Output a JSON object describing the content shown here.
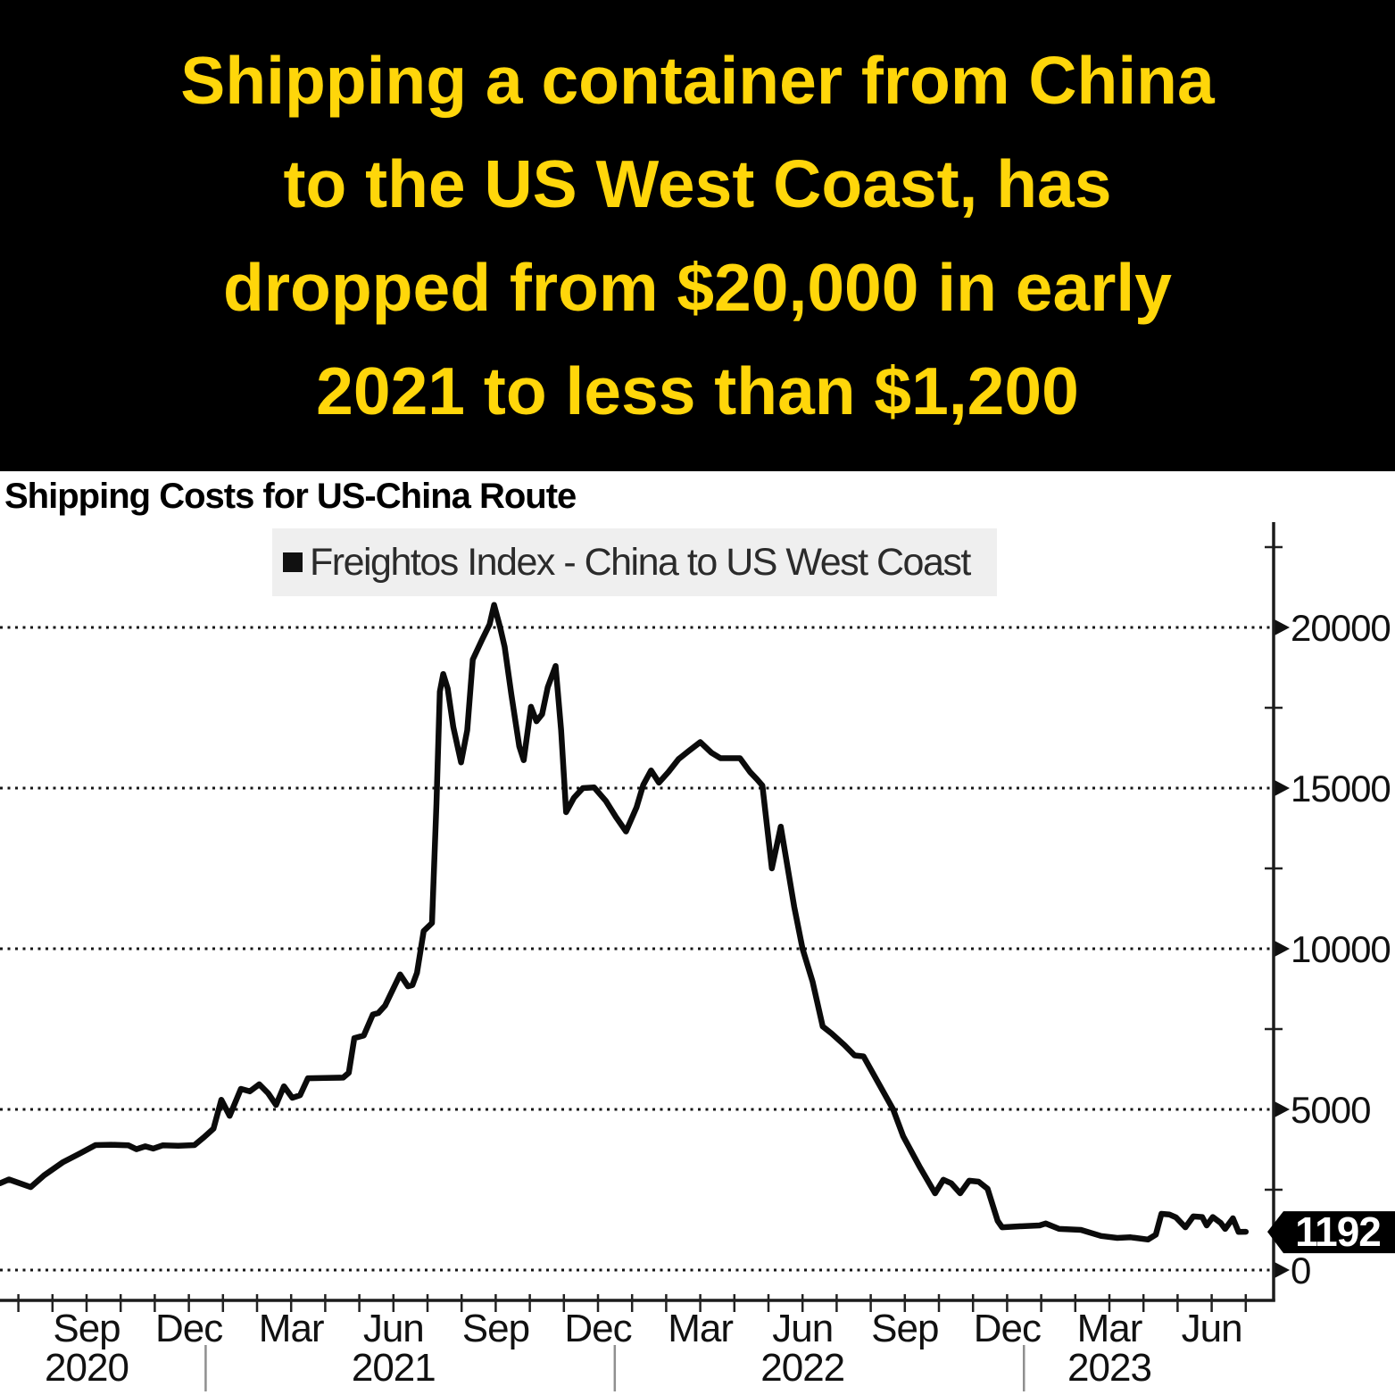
{
  "header": {
    "bg_color": "#000000",
    "text_color": "#FFD60A",
    "lines": [
      "Shipping a container from China",
      "to the US West Coast, has",
      "dropped from $20,000 in early",
      "2021 to less than $1,200"
    ]
  },
  "chart": {
    "title": "Shipping Costs for US-China Route",
    "legend": {
      "marker": "black-square",
      "label": "Freightos Index - China to US West Coast"
    },
    "value_tag": {
      "label": "1192",
      "bg": "#000000",
      "color": "#ffffff"
    },
    "line_color": "#0b0b0b"
  },
  "chart_data": {
    "type": "line",
    "title": "Shipping Costs for US-China Route",
    "legend_position": "top-center",
    "grid": "dotted horizontal",
    "ylim": [
      0,
      22500
    ],
    "y_ticks": [
      {
        "value": 0,
        "label": "0"
      },
      {
        "value": 5000,
        "label": "5000"
      },
      {
        "value": 10000,
        "label": "10000"
      },
      {
        "value": 15000,
        "label": "15000"
      },
      {
        "value": 20000,
        "label": "20000"
      }
    ],
    "y_minor_ticks": [
      2500,
      7500,
      12500,
      17500,
      22500
    ],
    "x_range": [
      "2020-06-15",
      "2023-07-01"
    ],
    "x_ticks": [
      {
        "date": "2020-09",
        "label": "Sep",
        "year": "2020"
      },
      {
        "date": "2020-12",
        "label": "Dec"
      },
      {
        "date": "2021-03",
        "label": "Mar"
      },
      {
        "date": "2021-06",
        "label": "Jun",
        "year": "2021"
      },
      {
        "date": "2021-09",
        "label": "Sep"
      },
      {
        "date": "2021-12",
        "label": "Dec"
      },
      {
        "date": "2022-03",
        "label": "Mar"
      },
      {
        "date": "2022-06",
        "label": "Jun",
        "year": "2022"
      },
      {
        "date": "2022-09",
        "label": "Sep"
      },
      {
        "date": "2022-12",
        "label": "Dec"
      },
      {
        "date": "2023-03",
        "label": "Mar",
        "year": "2023"
      },
      {
        "date": "2023-06",
        "label": "Jun"
      }
    ],
    "year_dividers": [
      "2020-12-16",
      "2021-12-16",
      "2022-12-16"
    ],
    "last_value": 1192,
    "series": [
      {
        "name": "Freightos Index - China to US West Coast",
        "color": "#0b0b0b",
        "points": [
          [
            "2020-06-15",
            2700
          ],
          [
            "2020-06-23",
            2820
          ],
          [
            "2020-07-12",
            2580
          ],
          [
            "2020-07-24",
            2950
          ],
          [
            "2020-08-10",
            3350
          ],
          [
            "2020-08-26",
            3640
          ],
          [
            "2020-09-09",
            3890
          ],
          [
            "2020-09-23",
            3900
          ],
          [
            "2020-10-08",
            3880
          ],
          [
            "2020-10-15",
            3760
          ],
          [
            "2020-10-23",
            3850
          ],
          [
            "2020-10-30",
            3780
          ],
          [
            "2020-11-08",
            3880
          ],
          [
            "2020-11-22",
            3870
          ],
          [
            "2020-12-06",
            3890
          ],
          [
            "2020-12-15",
            4150
          ],
          [
            "2020-12-23",
            4400
          ],
          [
            "2020-12-30",
            5300
          ],
          [
            "2021-01-07",
            4800
          ],
          [
            "2021-01-17",
            5640
          ],
          [
            "2021-01-25",
            5560
          ],
          [
            "2021-02-03",
            5780
          ],
          [
            "2021-02-11",
            5500
          ],
          [
            "2021-02-18",
            5140
          ],
          [
            "2021-02-25",
            5720
          ],
          [
            "2021-03-02",
            5360
          ],
          [
            "2021-03-09",
            5440
          ],
          [
            "2021-03-16",
            5970
          ],
          [
            "2021-04-01",
            5980
          ],
          [
            "2021-04-17",
            5990
          ],
          [
            "2021-04-22",
            6140
          ],
          [
            "2021-04-27",
            7220
          ],
          [
            "2021-05-05",
            7300
          ],
          [
            "2021-05-13",
            7950
          ],
          [
            "2021-05-18",
            8000
          ],
          [
            "2021-05-24",
            8230
          ],
          [
            "2021-06-07",
            9200
          ],
          [
            "2021-06-14",
            8830
          ],
          [
            "2021-06-18",
            8870
          ],
          [
            "2021-06-22",
            9250
          ],
          [
            "2021-06-28",
            10550
          ],
          [
            "2021-07-05",
            10800
          ],
          [
            "2021-07-09",
            14500
          ],
          [
            "2021-07-12",
            18000
          ],
          [
            "2021-07-15",
            18550
          ],
          [
            "2021-07-19",
            18100
          ],
          [
            "2021-07-24",
            16900
          ],
          [
            "2021-07-31",
            15800
          ],
          [
            "2021-08-06",
            16800
          ],
          [
            "2021-08-11",
            19000
          ],
          [
            "2021-08-19",
            19600
          ],
          [
            "2021-08-26",
            20100
          ],
          [
            "2021-08-30",
            20700
          ],
          [
            "2021-09-05",
            20000
          ],
          [
            "2021-09-09",
            19400
          ],
          [
            "2021-09-15",
            17900
          ],
          [
            "2021-09-22",
            16300
          ],
          [
            "2021-09-26",
            15870
          ],
          [
            "2021-10-02",
            17530
          ],
          [
            "2021-10-07",
            17080
          ],
          [
            "2021-10-12",
            17300
          ],
          [
            "2021-10-17",
            18140
          ],
          [
            "2021-10-24",
            18800
          ],
          [
            "2021-10-29",
            16800
          ],
          [
            "2021-11-03",
            14250
          ],
          [
            "2021-11-10",
            14700
          ],
          [
            "2021-11-18",
            15000
          ],
          [
            "2021-11-28",
            15020
          ],
          [
            "2021-12-08",
            14600
          ],
          [
            "2021-12-17",
            14100
          ],
          [
            "2021-12-26",
            13650
          ],
          [
            "2022-01-05",
            14400
          ],
          [
            "2022-01-11",
            15100
          ],
          [
            "2022-01-18",
            15550
          ],
          [
            "2022-01-25",
            15170
          ],
          [
            "2022-02-03",
            15500
          ],
          [
            "2022-02-12",
            15900
          ],
          [
            "2022-02-21",
            16150
          ],
          [
            "2022-03-01",
            16430
          ],
          [
            "2022-03-11",
            16100
          ],
          [
            "2022-03-19",
            15930
          ],
          [
            "2022-04-06",
            15930
          ],
          [
            "2022-04-15",
            15500
          ],
          [
            "2022-04-21",
            15280
          ],
          [
            "2022-04-26",
            15080
          ],
          [
            "2022-05-04",
            12500
          ],
          [
            "2022-05-12",
            13800
          ],
          [
            "2022-05-24",
            11300
          ],
          [
            "2022-06-01",
            10000
          ],
          [
            "2022-06-10",
            8970
          ],
          [
            "2022-06-19",
            7580
          ],
          [
            "2022-06-27",
            7360
          ],
          [
            "2022-07-08",
            7000
          ],
          [
            "2022-07-17",
            6680
          ],
          [
            "2022-07-25",
            6650
          ],
          [
            "2022-08-21",
            5000
          ],
          [
            "2022-08-30",
            4160
          ],
          [
            "2022-09-14",
            3230
          ],
          [
            "2022-09-28",
            2390
          ],
          [
            "2022-10-05",
            2810
          ],
          [
            "2022-10-12",
            2700
          ],
          [
            "2022-10-20",
            2390
          ],
          [
            "2022-10-28",
            2780
          ],
          [
            "2022-11-06",
            2750
          ],
          [
            "2022-11-14",
            2530
          ],
          [
            "2022-11-23",
            1530
          ],
          [
            "2022-11-27",
            1330
          ],
          [
            "2022-12-12",
            1360
          ],
          [
            "2022-12-30",
            1390
          ],
          [
            "2023-01-05",
            1450
          ],
          [
            "2023-01-17",
            1280
          ],
          [
            "2023-02-06",
            1250
          ],
          [
            "2023-02-24",
            1060
          ],
          [
            "2023-03-08",
            1000
          ],
          [
            "2023-03-20",
            1020
          ],
          [
            "2023-04-05",
            950
          ],
          [
            "2023-04-12",
            1100
          ],
          [
            "2023-04-17",
            1750
          ],
          [
            "2023-04-24",
            1730
          ],
          [
            "2023-04-30",
            1640
          ],
          [
            "2023-05-08",
            1330
          ],
          [
            "2023-05-15",
            1670
          ],
          [
            "2023-05-23",
            1650
          ],
          [
            "2023-05-27",
            1390
          ],
          [
            "2023-06-02",
            1650
          ],
          [
            "2023-06-09",
            1470
          ],
          [
            "2023-06-13",
            1280
          ],
          [
            "2023-06-20",
            1610
          ],
          [
            "2023-06-25",
            1190
          ],
          [
            "2023-07-01",
            1192
          ]
        ]
      }
    ]
  }
}
